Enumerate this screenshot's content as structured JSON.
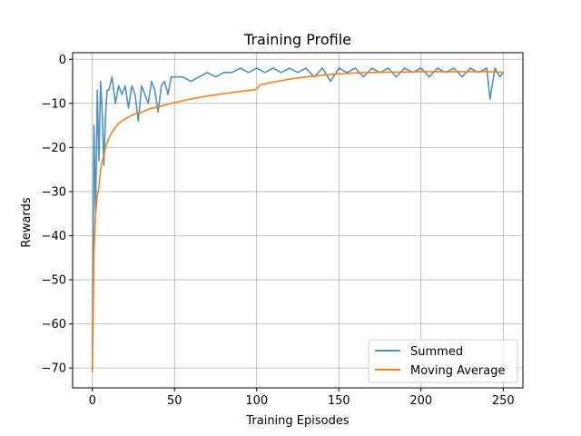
{
  "chart_data": {
    "type": "line",
    "title": "Training Profile",
    "xlabel": "Training Episodes",
    "ylabel": "Rewards",
    "xlim": [
      -12,
      262
    ],
    "ylim": [
      -74.5,
      1.5
    ],
    "xticks": [
      0,
      50,
      100,
      150,
      200,
      250
    ],
    "yticks": [
      0,
      -10,
      -20,
      -30,
      -40,
      -50,
      -60,
      -70
    ],
    "ytick_labels": [
      "0",
      "−10",
      "−20",
      "−30",
      "−40",
      "−50",
      "−60",
      "−70"
    ],
    "grid": true,
    "legend_position": "lower right",
    "series": [
      {
        "name": "Summed",
        "color": "#1f77b4",
        "x": [
          0,
          1,
          2,
          3,
          4,
          5,
          6,
          7,
          8,
          9,
          10,
          12,
          14,
          16,
          18,
          20,
          22,
          24,
          26,
          28,
          30,
          32,
          34,
          36,
          38,
          40,
          42,
          44,
          46,
          48,
          50,
          55,
          60,
          65,
          70,
          75,
          80,
          85,
          90,
          95,
          100,
          105,
          110,
          115,
          120,
          125,
          130,
          135,
          140,
          145,
          150,
          155,
          160,
          165,
          170,
          175,
          180,
          185,
          190,
          195,
          200,
          205,
          210,
          215,
          220,
          225,
          230,
          235,
          240,
          242,
          245,
          248,
          250
        ],
        "y": [
          -71,
          -15,
          -35,
          -7,
          -23,
          -5,
          -12,
          -24,
          -13,
          -7,
          -7,
          -4,
          -10,
          -6,
          -8,
          -6,
          -11,
          -6,
          -8,
          -14,
          -6,
          -8,
          -10,
          -5,
          -7,
          -12,
          -6,
          -5,
          -8,
          -4,
          -4,
          -4,
          -5,
          -4,
          -3,
          -4,
          -3,
          -3,
          -2,
          -3,
          -2,
          -3,
          -2,
          -3,
          -2,
          -3,
          -2,
          -4,
          -2,
          -5,
          -2,
          -3,
          -2,
          -4,
          -2,
          -3,
          -2,
          -4,
          -2,
          -3,
          -2,
          -4,
          -2,
          -3,
          -2,
          -4,
          -2,
          -3,
          -2,
          -9,
          -2,
          -4,
          -3
        ]
      },
      {
        "name": "Moving Average",
        "color": "#ff7f0e",
        "x": [
          0,
          1,
          2,
          3,
          4,
          5,
          6,
          7,
          8,
          9,
          10,
          12,
          14,
          16,
          18,
          20,
          25,
          30,
          35,
          40,
          45,
          50,
          60,
          70,
          80,
          90,
          99,
          100,
          102,
          110,
          120,
          130,
          140,
          150,
          160,
          170,
          180,
          190,
          200,
          210,
          220,
          230,
          240,
          250
        ],
        "y": [
          -71,
          -44,
          -35,
          -31,
          -29,
          -25,
          -23,
          -22,
          -20,
          -19,
          -18,
          -16.5,
          -15.5,
          -14.5,
          -14,
          -13.5,
          -12.5,
          -12,
          -11.2,
          -10.8,
          -10.3,
          -9.8,
          -9,
          -8.3,
          -7.8,
          -7.3,
          -6.9,
          -6.8,
          -5.8,
          -5.2,
          -4.5,
          -4,
          -3.6,
          -3.3,
          -3.1,
          -3,
          -2.9,
          -2.9,
          -2.8,
          -2.8,
          -2.8,
          -2.8,
          -2.8,
          -2.9
        ]
      }
    ]
  }
}
